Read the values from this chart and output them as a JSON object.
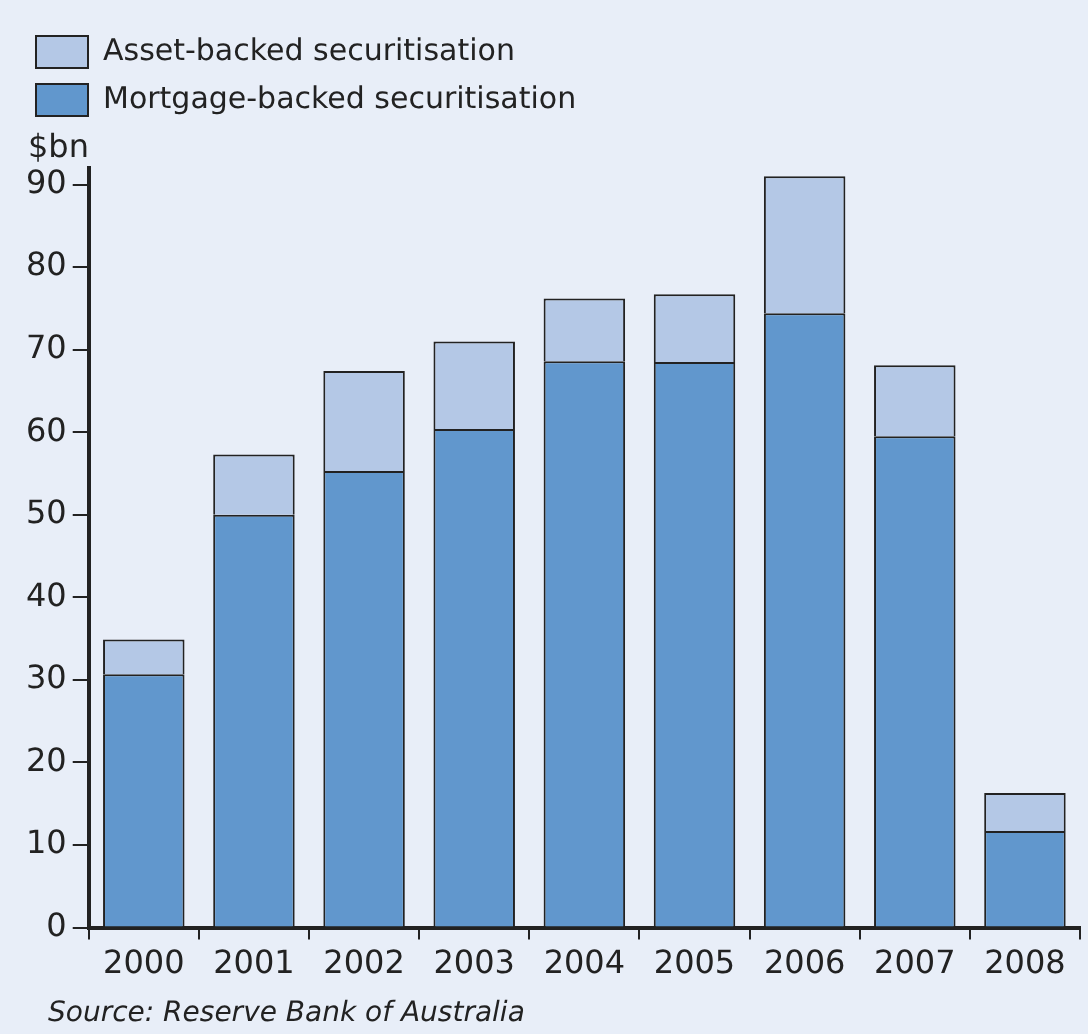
{
  "chart_data": {
    "type": "bar",
    "ylabel": "$bn",
    "stacked": true,
    "legend": "top left",
    "grid": false,
    "categories": [
      "2000",
      "2001",
      "2002",
      "2003",
      "2004",
      "2005",
      "2006",
      "2007",
      "2008"
    ],
    "series": [
      {
        "name": "Mortgage-backed securitisation",
        "color": "#6197cd",
        "values": [
          30.7,
          50,
          55.3,
          60.4,
          68.6,
          68.5,
          74.4,
          59.5,
          11.7
        ]
      },
      {
        "name": "Asset-backed securitisation",
        "color": "#b4c8e6",
        "values": [
          4.2,
          7.3,
          12.1,
          10.6,
          7.6,
          8.2,
          16.6,
          8.6,
          4.6
        ]
      }
    ],
    "ylim": [
      0,
      92
    ],
    "yticks": [
      0,
      10,
      20,
      30,
      40,
      50,
      60,
      70,
      80,
      90
    ],
    "annotations": [
      "Source: Reserve Bank of Australia"
    ]
  }
}
